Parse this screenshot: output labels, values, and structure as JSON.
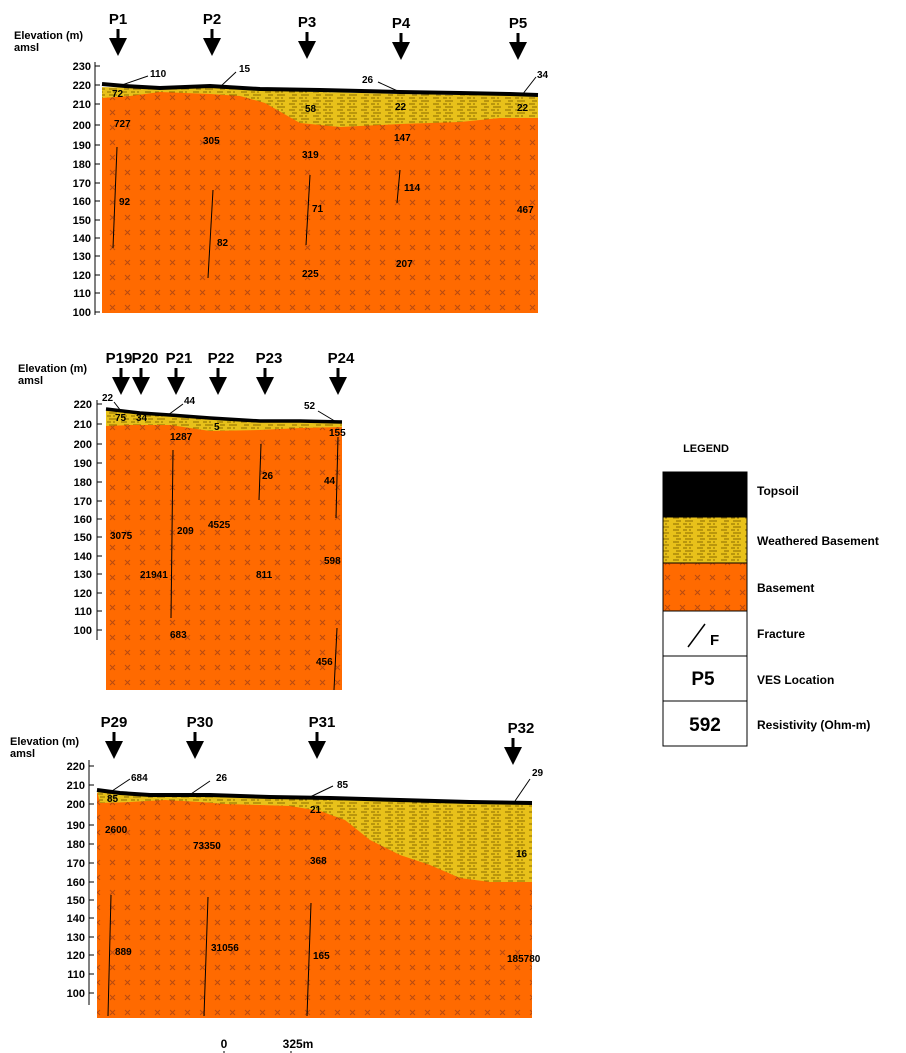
{
  "colors": {
    "topsoil": "#000000",
    "weathered": "#e8c11a",
    "weathered_dash": "#8a6a00",
    "basement": "#ff6a00",
    "basement_mark": "#b84a10",
    "fracture": "#000000"
  },
  "sections": [
    {
      "elev_label_1": "Elevation (m)",
      "elev_label_2": "amsl",
      "ticks": [
        "230",
        "220",
        "210",
        "200",
        "190",
        "180",
        "170",
        "160",
        "150",
        "140",
        "130",
        "120",
        "110",
        "100"
      ],
      "ves": [
        "P1",
        "P2",
        "P3",
        "P4",
        "P5"
      ],
      "topsoil_values": [
        "110",
        "15",
        "26",
        "34"
      ],
      "values": [
        "72",
        "727",
        "305",
        "58",
        "22",
        "22",
        "147",
        "319",
        "114",
        "92",
        "71",
        "467",
        "82",
        "225",
        "207"
      ]
    },
    {
      "elev_label_1": "Elevation (m)",
      "elev_label_2": "amsl",
      "ticks": [
        "220",
        "210",
        "200",
        "190",
        "180",
        "170",
        "160",
        "150",
        "140",
        "130",
        "120",
        "110",
        "100"
      ],
      "ves": [
        "P19",
        "P20",
        "P21",
        "P22",
        "P23",
        "P24"
      ],
      "topsoil_values": [
        "22",
        "44",
        "52"
      ],
      "values": [
        "75",
        "34",
        "5",
        "155",
        "1287",
        "26",
        "44",
        "4525",
        "3075",
        "209",
        "598",
        "21941",
        "811",
        "683",
        "456"
      ]
    },
    {
      "elev_label_1": "Elevation (m)",
      "elev_label_2": "amsl",
      "ticks": [
        "220",
        "210",
        "200",
        "190",
        "180",
        "170",
        "160",
        "150",
        "140",
        "130",
        "120",
        "110",
        "100"
      ],
      "ves": [
        "P29",
        "P30",
        "P31",
        "P32"
      ],
      "topsoil_values": [
        "684",
        "26",
        "85",
        "29"
      ],
      "values": [
        "85",
        "21",
        "2600",
        "73350",
        "368",
        "16",
        "889",
        "31056",
        "165",
        "185780"
      ]
    }
  ],
  "scale": {
    "start": "0",
    "end": "325m"
  },
  "legend": {
    "title": "LEGEND",
    "topsoil": "Topsoil",
    "weathered": "Weathered Basement",
    "basement": "Basement",
    "fracture": "Fracture",
    "fracture_symbol": "F",
    "ves_label": "VES Location",
    "ves_symbol": "P5",
    "resistivity_label": "Resistivity (Ohm-m)",
    "resistivity_symbol": "592"
  }
}
